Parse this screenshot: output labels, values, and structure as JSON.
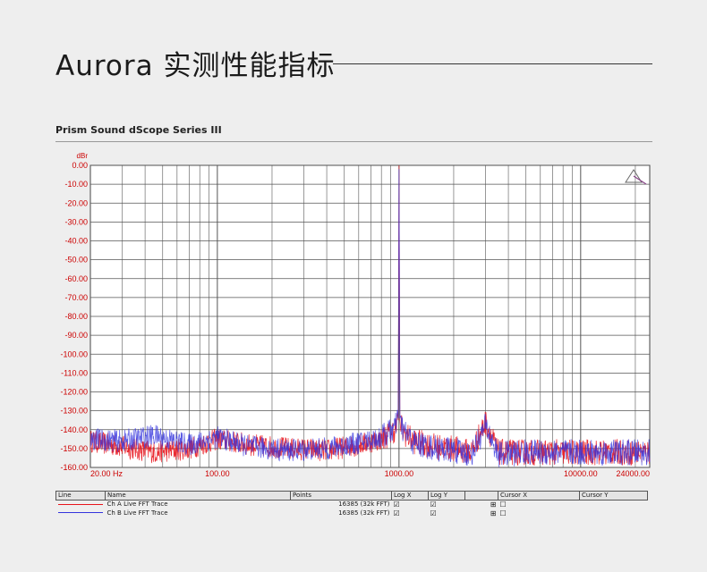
{
  "header": {
    "title": "Aurora 实测性能指标",
    "subtitle": "Prism Sound dScope Series III"
  },
  "chart_data": {
    "type": "line",
    "ylabel": "dBr",
    "xscale": "log",
    "xlim": [
      20,
      24000
    ],
    "ylim": [
      -160,
      0
    ],
    "grid": true,
    "y_ticks": [
      0,
      -10,
      -20,
      -30,
      -40,
      -50,
      -60,
      -70,
      -80,
      -90,
      -100,
      -110,
      -120,
      -130,
      -140,
      -150,
      -160
    ],
    "y_tick_labels": [
      "0.00",
      "-10.00",
      "-20.00",
      "-30.00",
      "-40.00",
      "-50.00",
      "-60.00",
      "-70.00",
      "-80.00",
      "-90.00",
      "-100.00",
      "-110.00",
      "-120.00",
      "-130.00",
      "-140.00",
      "-150.00",
      "-160.00"
    ],
    "x_ticks": [
      20,
      100,
      1000,
      10000,
      24000
    ],
    "x_tick_labels": [
      "20.00 Hz",
      "100.00",
      "1000.00",
      "10000.00",
      "24000.00"
    ],
    "series": [
      {
        "name": "Ch A Live FFT Trace",
        "color": "#e8141c",
        "x": [
          20,
          30,
          45,
          70,
          100,
          150,
          250,
          400,
          600,
          800,
          950,
          990,
          1000,
          1010,
          1050,
          1200,
          1600,
          2000,
          2500,
          3000,
          3500,
          5000,
          7000,
          10000,
          15000,
          20000,
          24000
        ],
        "y": [
          -146,
          -149,
          -152,
          -150,
          -145,
          -148,
          -150,
          -151,
          -148,
          -145,
          -140,
          -135,
          0,
          -135,
          -141,
          -146,
          -149,
          -150,
          -152,
          -136,
          -152,
          -152,
          -152,
          -152,
          -152,
          -152,
          -152
        ]
      },
      {
        "name": "Ch B Live FFT Trace",
        "color": "#3333dd",
        "x": [
          20,
          30,
          45,
          70,
          100,
          150,
          250,
          400,
          600,
          800,
          950,
          990,
          1000,
          1010,
          1050,
          1200,
          1600,
          2000,
          2500,
          3000,
          3500,
          5000,
          7000,
          10000,
          15000,
          20000,
          24000
        ],
        "y": [
          -145,
          -146,
          -143,
          -148,
          -144,
          -149,
          -151,
          -150,
          -147,
          -144,
          -139,
          -134,
          -2,
          -134,
          -140,
          -147,
          -150,
          -151,
          -153,
          -138,
          -153,
          -152,
          -152,
          -152,
          -152,
          -152,
          -152
        ]
      }
    ]
  },
  "legend_table": {
    "headers": [
      "Line",
      "Name",
      "Points",
      "Log X",
      "Log Y",
      "",
      "Cursor X",
      "Cursor Y"
    ],
    "rows": [
      {
        "name": "Ch A Live FFT Trace",
        "points": "16385 (32k FFT)",
        "log_x": "☑",
        "log_y": "☑",
        "extra": "⊞",
        "cursor": "☐",
        "color": "#e8141c"
      },
      {
        "name": "Ch B Live FFT Trace",
        "points": "16385 (32k FFT)",
        "log_x": "☑",
        "log_y": "☑",
        "extra": "⊞",
        "cursor": "☐",
        "color": "#3333dd"
      }
    ]
  },
  "colors": {
    "axis_labels": "#cc0000",
    "grid": "#555555"
  }
}
